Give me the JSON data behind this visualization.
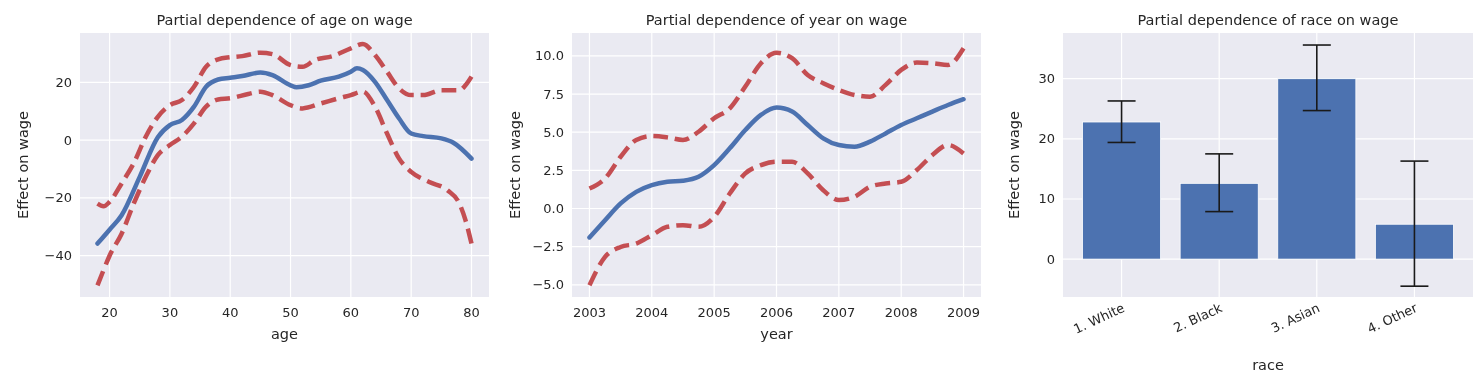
{
  "chart_data": [
    {
      "type": "line",
      "title": "Partial dependence of age on wage",
      "xlabel": "age",
      "ylabel": "Effect on wage",
      "xlim": [
        15.1,
        82.9
      ],
      "ylim": [
        -54.3,
        37.1
      ],
      "xticks": [
        20,
        30,
        40,
        50,
        60,
        70,
        80
      ],
      "yticks": [
        -40,
        -20,
        0,
        20
      ],
      "grid": true,
      "series": [
        {
          "color": "#4c72b0",
          "line_style": "solid",
          "x": [
            18,
            20,
            22,
            25,
            28,
            30,
            32,
            34,
            36,
            38,
            40,
            42,
            45,
            47,
            50,
            51,
            53,
            55,
            58,
            60,
            61,
            62,
            64,
            66,
            68,
            70,
            72,
            75,
            77,
            80
          ],
          "values": [
            -35.8,
            -31,
            -26,
            -12.7,
            1,
            5.2,
            7,
            11.6,
            18.5,
            21,
            21.6,
            22.2,
            23.4,
            22.5,
            19,
            18.3,
            19,
            20.6,
            22,
            23.7,
            24.9,
            24.3,
            20.2,
            13.9,
            7.5,
            2.3,
            1.4,
            0.6,
            -0.9,
            -6.4
          ]
        },
        {
          "color": "#c44e52",
          "line_style": "dashed",
          "x": [
            18,
            19,
            20,
            22,
            24,
            26,
            28,
            30,
            32,
            34,
            36,
            38,
            40,
            42,
            45,
            47,
            50,
            52,
            54,
            57,
            60,
            62,
            64,
            66,
            68,
            70,
            72,
            75,
            78,
            79,
            80
          ],
          "values": [
            -22,
            -22.9,
            -21.4,
            -15,
            -8,
            1.2,
            8.1,
            12.1,
            13.9,
            18.5,
            25.4,
            28,
            28.7,
            29.1,
            30.3,
            29.8,
            26,
            25.4,
            27.7,
            29.1,
            31.8,
            33.3,
            29.5,
            23.7,
            17.9,
            15.6,
            15.6,
            17.3,
            17.3,
            19,
            22
          ]
        },
        {
          "color": "#c44e52",
          "line_style": "dashed",
          "x": [
            18,
            19,
            20,
            22,
            24,
            26,
            28,
            30,
            32,
            34,
            36,
            38,
            40,
            43,
            45,
            47,
            50,
            52,
            55,
            58,
            60,
            62,
            64,
            66,
            68,
            70,
            73,
            76,
            78,
            79,
            80
          ],
          "values": [
            -50.3,
            -45,
            -40,
            -32.4,
            -22,
            -12.7,
            -5.2,
            -1.7,
            1.2,
            5.8,
            11.6,
            14.1,
            14.5,
            16,
            16.8,
            15.6,
            12.1,
            11,
            12.7,
            14.5,
            15.6,
            16.8,
            11.6,
            2.3,
            -6.4,
            -11,
            -14.5,
            -17.3,
            -22,
            -27.7,
            -35.8
          ]
        }
      ]
    },
    {
      "type": "line",
      "title": "Partial dependence of year on wage",
      "xlabel": "year",
      "ylabel": "Effect on wage",
      "xlim": [
        2002.72,
        2009.28
      ],
      "ylim": [
        -5.8,
        11.5
      ],
      "xticks": [
        2003,
        2004,
        2005,
        2006,
        2007,
        2008,
        2009
      ],
      "yticks": [
        {
          "value": -5,
          "label": "−5.0"
        },
        {
          "value": -2.5,
          "label": "−2.5"
        },
        {
          "value": 0,
          "label": "0.0"
        },
        {
          "value": 2.5,
          "label": "2.5"
        },
        {
          "value": 5,
          "label": "5.0"
        },
        {
          "value": 7.5,
          "label": "7.5"
        },
        {
          "value": 10,
          "label": "10.0"
        }
      ],
      "grid": true,
      "series": [
        {
          "color": "#4c72b0",
          "line_style": "solid",
          "x": [
            2003,
            2003.25,
            2003.5,
            2003.75,
            2004,
            2004.25,
            2004.5,
            2004.75,
            2005,
            2005.25,
            2005.5,
            2005.75,
            2006,
            2006.25,
            2006.5,
            2006.75,
            2007,
            2007.25,
            2007.5,
            2007.75,
            2008,
            2008.25,
            2008.5,
            2008.75,
            2009
          ],
          "values": [
            -1.9,
            -0.77,
            0.33,
            1.09,
            1.53,
            1.75,
            1.82,
            2.08,
            2.84,
            3.94,
            5.14,
            6.13,
            6.61,
            6.35,
            5.47,
            4.6,
            4.16,
            4.05,
            4.38,
            4.92,
            5.47,
            5.91,
            6.35,
            6.78,
            7.16
          ]
        },
        {
          "color": "#c44e52",
          "line_style": "dashed",
          "x": [
            2003,
            2003.25,
            2003.5,
            2003.75,
            2004,
            2004.25,
            2004.5,
            2004.75,
            2005,
            2005.25,
            2005.5,
            2005.75,
            2006,
            2006.25,
            2006.5,
            2006.75,
            2007,
            2007.25,
            2007.5,
            2007.75,
            2008,
            2008.25,
            2008.5,
            2008.75,
            2009
          ],
          "values": [
            1.31,
            1.97,
            3.39,
            4.49,
            4.75,
            4.66,
            4.49,
            5.03,
            5.91,
            6.56,
            7.99,
            9.52,
            10.2,
            9.85,
            8.75,
            8.21,
            7.77,
            7.44,
            7.33,
            8.1,
            9.08,
            9.56,
            9.52,
            9.41,
            10.5
          ]
        },
        {
          "color": "#c44e52",
          "line_style": "dashed",
          "x": [
            2003,
            2003.25,
            2003.5,
            2003.75,
            2004,
            2004.25,
            2004.5,
            2004.75,
            2005,
            2005.25,
            2005.5,
            2005.75,
            2006,
            2006.25,
            2006.5,
            2006.75,
            2007,
            2007.25,
            2007.5,
            2007.75,
            2008,
            2008.25,
            2008.5,
            2008.75,
            2009
          ],
          "values": [
            -5.03,
            -3.17,
            -2.52,
            -2.3,
            -1.75,
            -1.2,
            -1.09,
            -1.2,
            -0.55,
            0.98,
            2.3,
            2.84,
            3.06,
            3.06,
            2.3,
            1.2,
            0.55,
            0.77,
            1.42,
            1.64,
            1.75,
            2.52,
            3.5,
            4.16,
            3.61
          ]
        }
      ]
    },
    {
      "type": "bar",
      "title": "Partial dependence of race on wage",
      "xlabel": "race",
      "ylabel": "Effect on wage",
      "categories": [
        "1. White",
        "2. Black",
        "3. Asian",
        "4. Other"
      ],
      "values": [
        22.8,
        12.6,
        30,
        5.8
      ],
      "color": "#4c72b0",
      "errors": [
        [
          19.4,
          26.3
        ],
        [
          7.9,
          17.5
        ],
        [
          24.7,
          35.6
        ],
        [
          -4.5,
          16.3
        ]
      ],
      "ylim": [
        -6.3,
        37.6
      ],
      "yticks": [
        0,
        10,
        20,
        30
      ],
      "grid": true
    }
  ]
}
